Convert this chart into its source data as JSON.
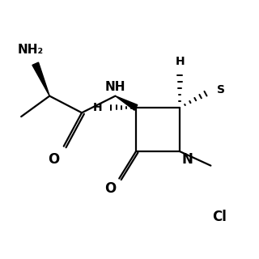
{
  "background_color": "#ffffff",
  "line_color": "#000000",
  "line_width": 1.6,
  "figure_size": [
    3.2,
    3.2
  ],
  "dpi": 100,
  "xlim": [
    0,
    10
  ],
  "ylim": [
    0,
    10
  ]
}
